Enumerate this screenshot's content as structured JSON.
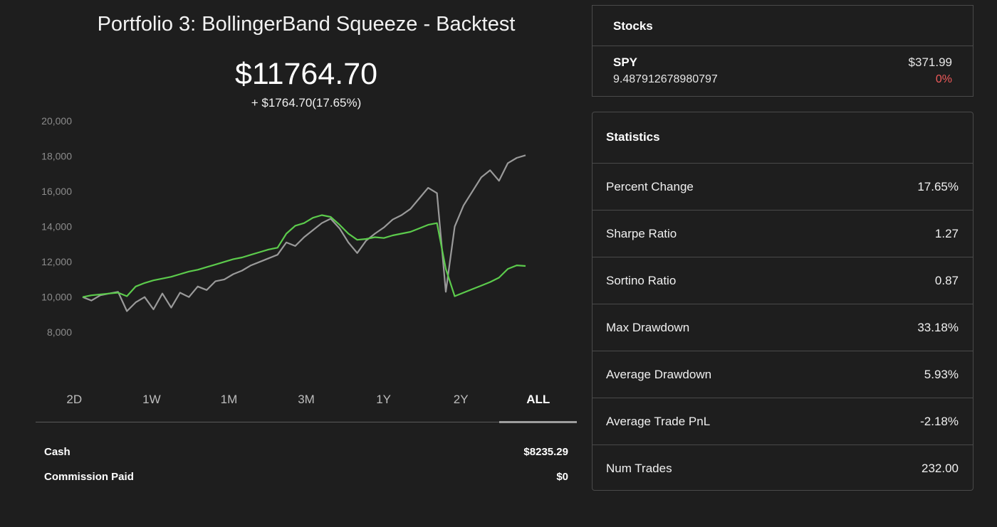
{
  "portfolio": {
    "title": "Portfolio 3: BollingerBand Squeeze - Backtest",
    "value": "$11764.70",
    "change": "+ $1764.70(17.65%)"
  },
  "ranges": [
    "2D",
    "1W",
    "1M",
    "3M",
    "1Y",
    "2Y",
    "ALL"
  ],
  "active_range": "ALL",
  "account": {
    "cash_label": "Cash",
    "cash_value": "$8235.29",
    "commission_label": "Commission Paid",
    "commission_value": "$0"
  },
  "stocks": {
    "header": "Stocks",
    "items": [
      {
        "symbol": "SPY",
        "quantity": "9.487912678980797",
        "price": "$371.99",
        "change": "0%"
      }
    ]
  },
  "statistics": {
    "header": "Statistics",
    "rows": [
      {
        "label": "Percent Change",
        "value": "17.65%"
      },
      {
        "label": "Sharpe Ratio",
        "value": "1.27"
      },
      {
        "label": "Sortino Ratio",
        "value": "0.87"
      },
      {
        "label": "Max Drawdown",
        "value": "33.18%"
      },
      {
        "label": "Average Drawdown",
        "value": "5.93%"
      },
      {
        "label": "Average Trade PnL",
        "value": "-2.18%"
      },
      {
        "label": "Num Trades",
        "value": "232.00"
      }
    ]
  },
  "colors": {
    "portfolio_line": "#5ccb4c",
    "benchmark_line": "#9a9a9a",
    "negative": "#f05a5a"
  },
  "chart_data": {
    "type": "line",
    "ylim": [
      7000,
      20000
    ],
    "yticks": [
      20000,
      18000,
      16000,
      14000,
      12000,
      10000,
      8000
    ],
    "ytick_labels": [
      "20,000",
      "18,000",
      "16,000",
      "14,000",
      "12,000",
      "10,000",
      "8,000"
    ],
    "grid": false,
    "series": [
      {
        "color": "#5ccb4c",
        "values": [
          10000,
          10100,
          10150,
          10200,
          10250,
          10050,
          10600,
          10800,
          10950,
          11050,
          11150,
          11300,
          11450,
          11550,
          11700,
          11850,
          12000,
          12150,
          12250,
          12400,
          12550,
          12700,
          12800,
          13600,
          14050,
          14200,
          14500,
          14650,
          14550,
          14100,
          13600,
          13250,
          13300,
          13400,
          13350,
          13500,
          13600,
          13700,
          13900,
          14100,
          14200,
          11600,
          10050,
          10250,
          10450,
          10650,
          10850,
          11100,
          11600,
          11800,
          11764
        ]
      },
      {
        "color": "#9a9a9a",
        "values": [
          10000,
          9800,
          10100,
          10200,
          10300,
          9200,
          9700,
          10000,
          9300,
          10200,
          9400,
          10250,
          10000,
          10600,
          10400,
          10900,
          11000,
          11300,
          11500,
          11800,
          12000,
          12200,
          12400,
          13100,
          12900,
          13400,
          13800,
          14200,
          14450,
          13900,
          13100,
          12500,
          13200,
          13600,
          13950,
          14400,
          14650,
          15000,
          15600,
          16200,
          15900,
          10300,
          14000,
          15200,
          16000,
          16800,
          17200,
          16600,
          17600,
          17900,
          18050
        ]
      }
    ]
  }
}
